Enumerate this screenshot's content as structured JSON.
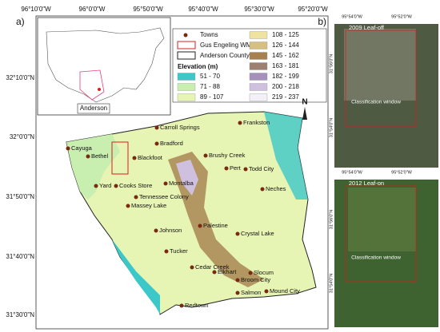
{
  "panel_labels": [
    "a)",
    "b)"
  ],
  "map": {
    "lon_labels": [
      "96°10'0\"W",
      "96°0'0\"W",
      "95°50'0\"W",
      "95°40'0\"W",
      "95°30'0\"W",
      "95°20'0\"W"
    ],
    "lat_labels": [
      "32°10'0\"N",
      "32°0'0\"N",
      "31°50'0\"N",
      "31°40'0\"N",
      "31°30'0\"N"
    ],
    "inset_label": "Anderson",
    "north": "N",
    "legend": {
      "towns": "Towns",
      "wma": "Gus Engeling WMA",
      "county": "Anderson  County",
      "elevation_title": "Elevation (m)",
      "classes": [
        {
          "label": "51 - 70",
          "color": "#3cc8c8"
        },
        {
          "label": "71 - 88",
          "color": "#c8eeb0"
        },
        {
          "label": "89 - 107",
          "color": "#e6f4b4"
        },
        {
          "label": "108 - 125",
          "color": "#efe3a2"
        },
        {
          "label": "126 - 144",
          "color": "#d6bf80"
        },
        {
          "label": "145 - 162",
          "color": "#a6804e"
        },
        {
          "label": "163 - 181",
          "color": "#9c8070"
        },
        {
          "label": "182 - 199",
          "color": "#a690bc"
        },
        {
          "label": "200 - 218",
          "color": "#cfc0e0"
        },
        {
          "label": "219 - 237",
          "color": "#f4f0f8"
        }
      ]
    },
    "towns": [
      "Carroll Springs",
      "Frankston",
      "Bradford",
      "Brushy Creek",
      "Cayuga",
      "Bethel",
      "Blackfoot",
      "Pert",
      "Todd City",
      "Yard",
      "Cooks Store",
      "Montalba",
      "Neches",
      "Tennessee Colony",
      "Massey Lake",
      "Palestine",
      "Crystal Lake",
      "Johnson",
      "Tucker",
      "Cedar Creek",
      "Elkhart",
      "Slocum",
      "Broom City",
      "Salmon",
      "Mound City",
      "Redtown"
    ]
  },
  "imagery": {
    "lon_labels": [
      "95°54'0\"W",
      "95°52'0\"W"
    ],
    "lat_labels": [
      "31°56'0\"N",
      "31°54'0\"N"
    ],
    "panels": [
      {
        "title": "2009 Leaf-off",
        "window": "Classification window"
      },
      {
        "title": "2012 Leaf-on",
        "window": "Classification window"
      }
    ]
  }
}
